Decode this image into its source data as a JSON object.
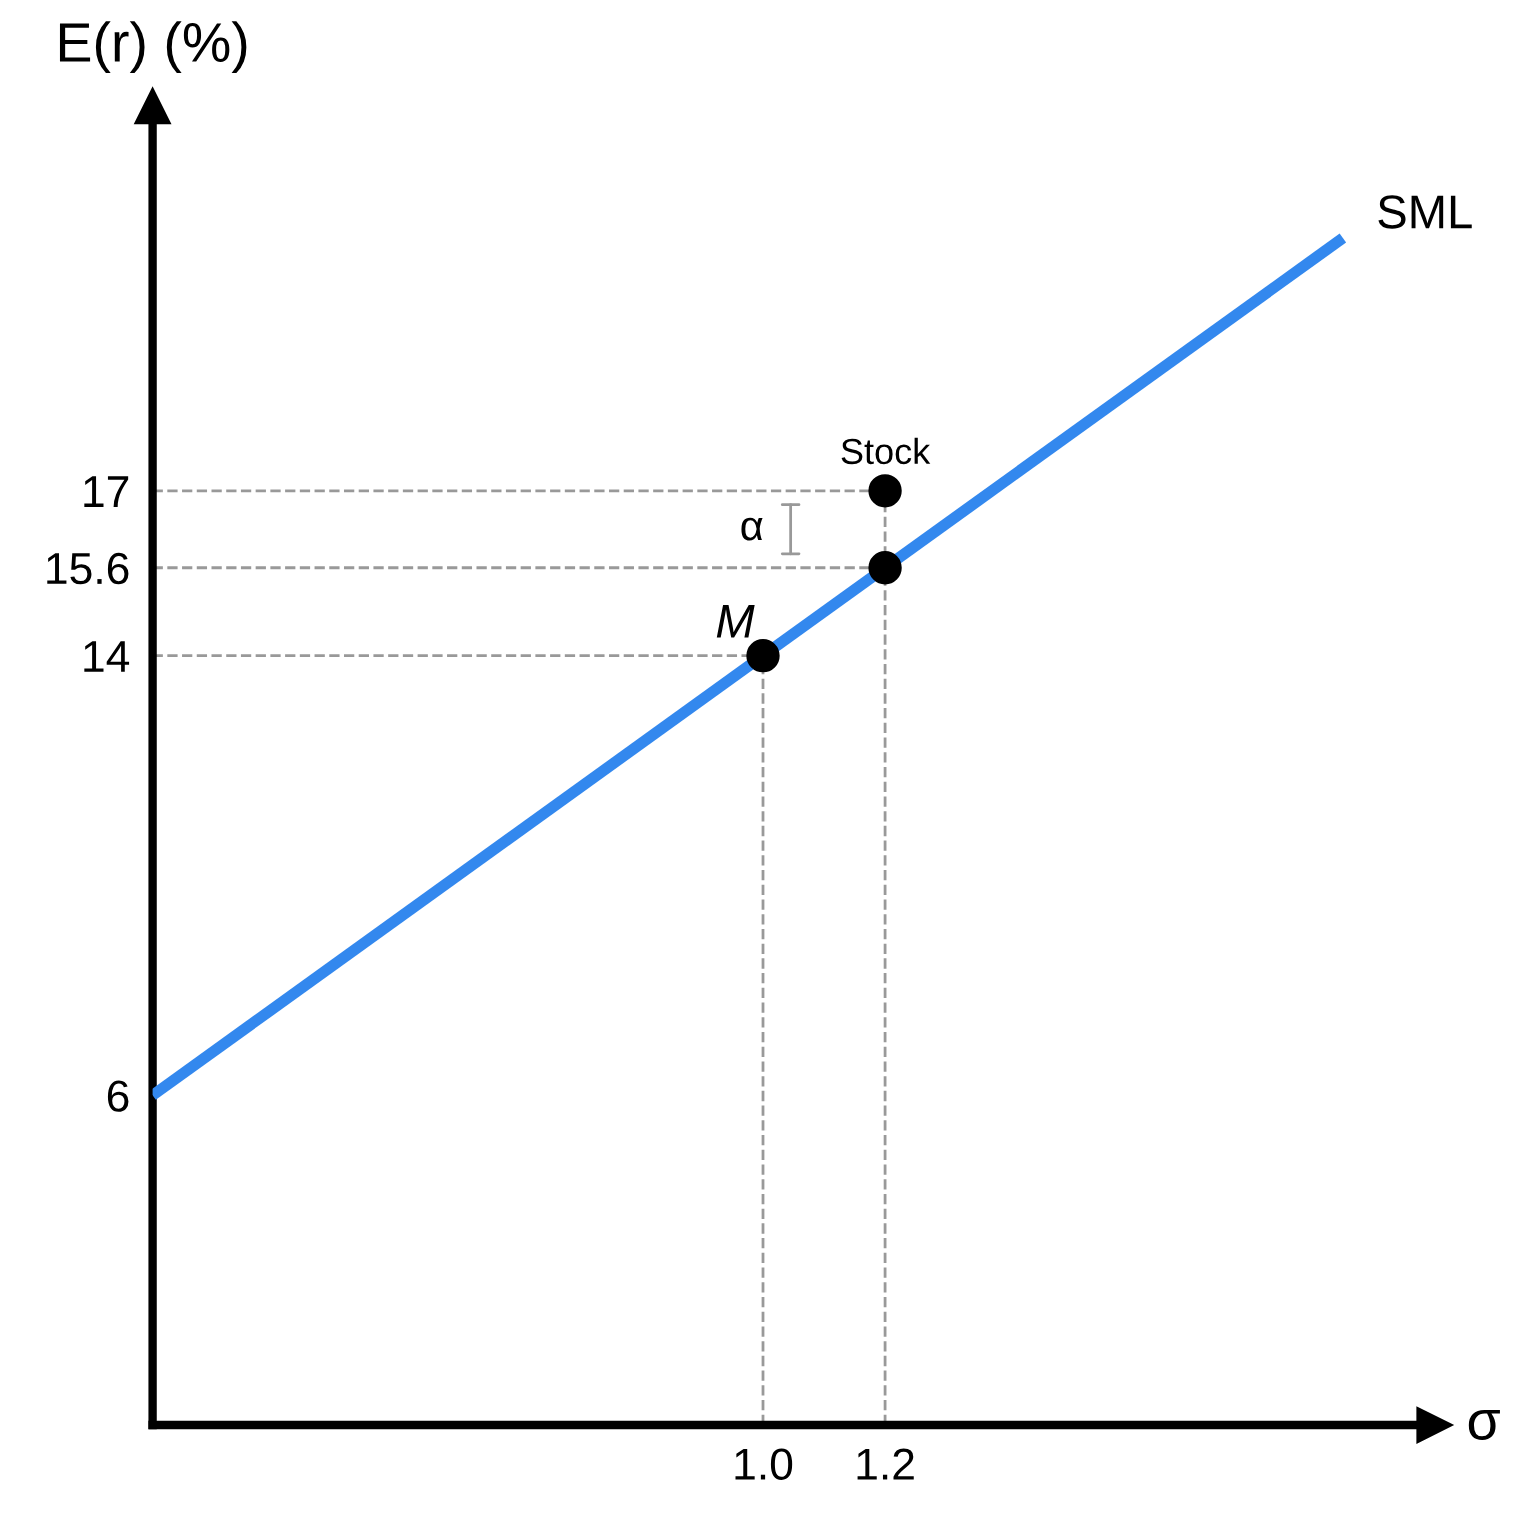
{
  "chart_data": {
    "type": "line",
    "xlabel": "σ",
    "ylabel": "E(r) (%)",
    "xlim": [
      0,
      2.1
    ],
    "ylim": [
      0,
      24
    ],
    "xticks": [
      {
        "value": 1.0,
        "label": "1.0"
      },
      1.2
    ],
    "yticks": [
      6,
      14,
      15.6,
      17
    ],
    "series": [
      {
        "name": "SML",
        "color": "#3388ee",
        "x": [
          0,
          1.95
        ],
        "values": [
          6,
          21.6
        ]
      },
      {
        "type": "scatter",
        "color": "#000000",
        "marker": "circle",
        "x": [
          1.0,
          1.2,
          1.2
        ],
        "values": [
          14,
          15.6,
          17
        ]
      }
    ],
    "ref_lines": [
      {
        "axis": "y",
        "value": 14,
        "line_style": "dashed",
        "color": "#999999"
      },
      {
        "axis": "y",
        "value": 15.6,
        "line_style": "dashed",
        "color": "#999999"
      },
      {
        "axis": "y",
        "value": 17,
        "line_style": "dashed",
        "color": "#999999"
      },
      {
        "axis": "x",
        "value": 1.0,
        "line_style": "dashed",
        "color": "#999999"
      },
      {
        "axis": "x",
        "value": 1.2,
        "line_style": "dashed",
        "color": "#999999"
      }
    ],
    "annotations": [
      {
        "text": "M",
        "x": 1.0,
        "y": 14
      },
      {
        "text": "Stock",
        "x": 1.2,
        "y": 17
      },
      "α"
    ],
    "grid": false,
    "legend": false
  }
}
